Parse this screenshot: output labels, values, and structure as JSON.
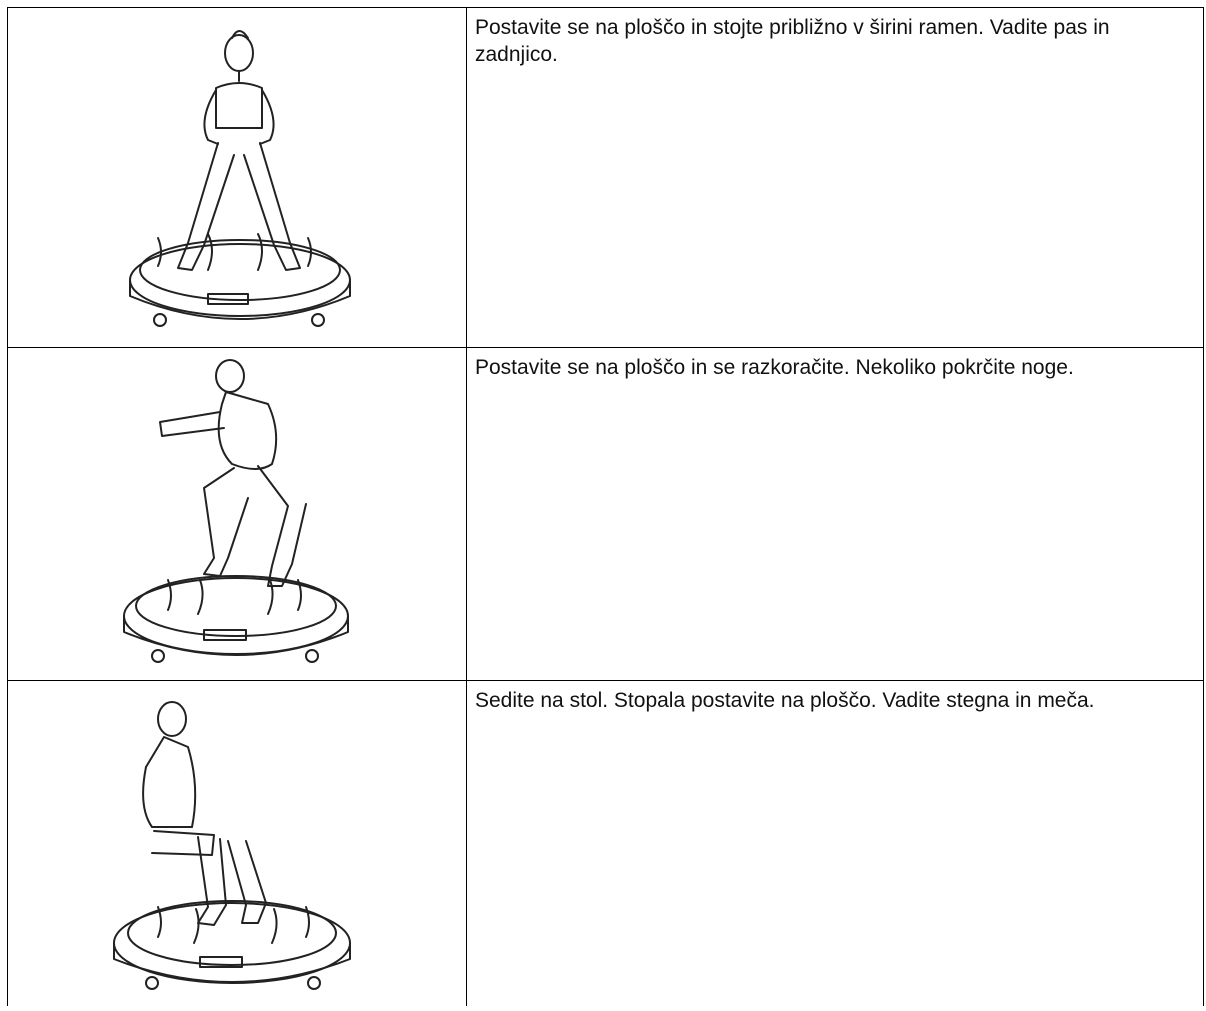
{
  "table": {
    "rows": [
      {
        "text": "Postavite se na ploščo in stojte približno v širini ramen. Vadite pas in zadnjico."
      },
      {
        "text": "Postavite se na ploščo in se razkoračite. Nekoliko pokrčite noge."
      },
      {
        "text": "Sedite na stol. Stopala postavite na ploščo. Vadite stegna in meča."
      }
    ]
  }
}
